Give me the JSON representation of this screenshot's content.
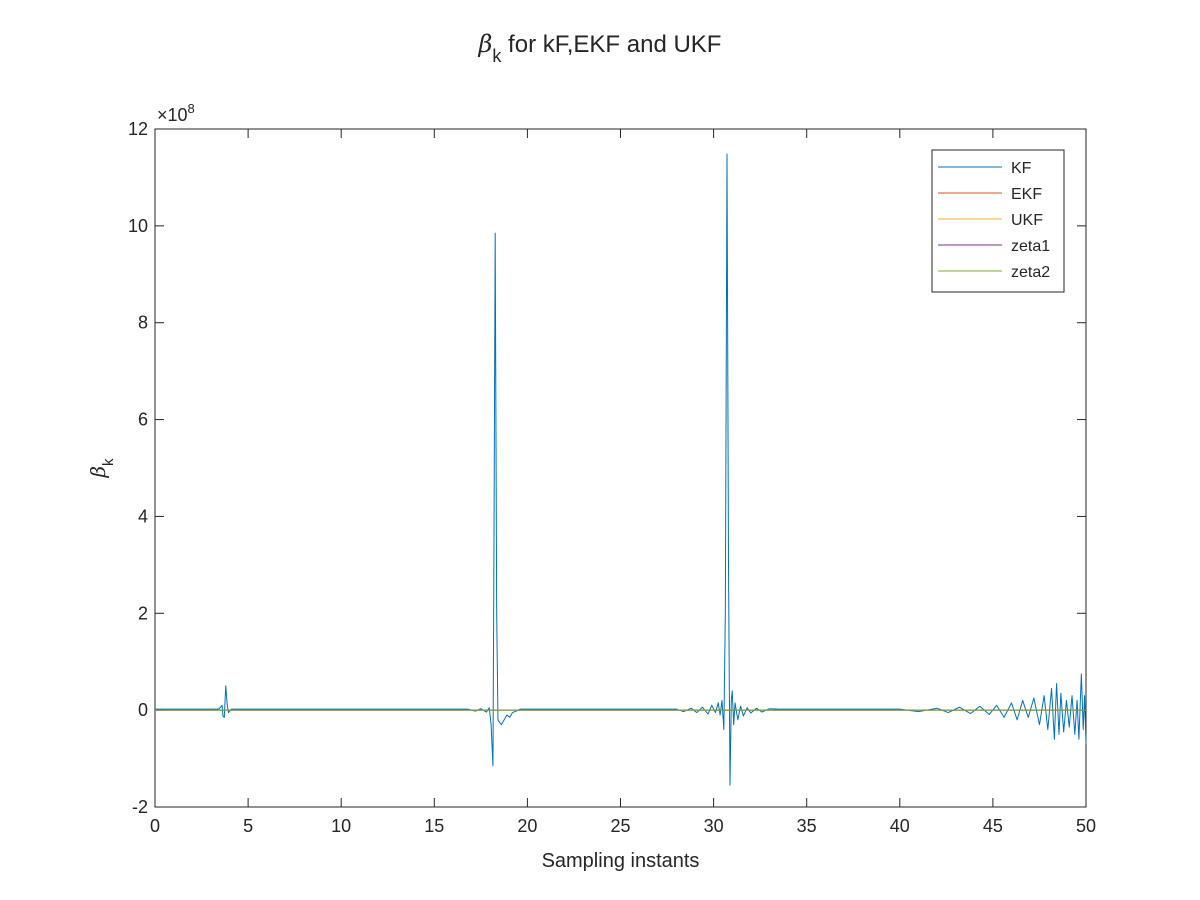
{
  "chart_data": {
    "type": "line",
    "title": {
      "symbol": "β",
      "subscript": "k",
      "text": " for kF,EKF and UKF"
    },
    "xlabel": "Sampling instants",
    "ylabel": {
      "symbol": "β",
      "subscript": "k"
    },
    "y_exponent": {
      "base": "×10",
      "power": "8"
    },
    "xlim": [
      0,
      50
    ],
    "ylim": [
      -2,
      12
    ],
    "xticks": [
      0,
      5,
      10,
      15,
      20,
      25,
      30,
      35,
      40,
      45,
      50
    ],
    "yticks": [
      -2,
      0,
      2,
      4,
      6,
      8,
      10,
      12
    ],
    "legend_position": "top-right",
    "grid": false,
    "series": [
      {
        "name": "KF",
        "color": "#0072BD",
        "points": [
          [
            0,
            0.02
          ],
          [
            3.4,
            0.02
          ],
          [
            3.5,
            0.05
          ],
          [
            3.6,
            0.1
          ],
          [
            3.65,
            -0.12
          ],
          [
            3.72,
            -0.15
          ],
          [
            3.8,
            0.5
          ],
          [
            3.88,
            0.1
          ],
          [
            3.95,
            -0.05
          ],
          [
            4.1,
            0.02
          ],
          [
            16.8,
            0.02
          ],
          [
            17.2,
            -0.02
          ],
          [
            17.5,
            0.03
          ],
          [
            17.8,
            -0.04
          ],
          [
            17.95,
            0.05
          ],
          [
            18.05,
            -0.3
          ],
          [
            18.15,
            -1.15
          ],
          [
            18.2,
            3
          ],
          [
            18.27,
            9.85
          ],
          [
            18.35,
            2
          ],
          [
            18.42,
            -0.2
          ],
          [
            18.5,
            -0.25
          ],
          [
            18.6,
            -0.3
          ],
          [
            18.75,
            -0.2
          ],
          [
            18.9,
            -0.1
          ],
          [
            19.05,
            -0.15
          ],
          [
            19.2,
            -0.05
          ],
          [
            19.4,
            -0.02
          ],
          [
            19.6,
            0.02
          ],
          [
            19.9,
            0.02
          ],
          [
            28.0,
            0.02
          ],
          [
            28.4,
            -0.03
          ],
          [
            28.8,
            0.04
          ],
          [
            29.1,
            -0.05
          ],
          [
            29.4,
            0.06
          ],
          [
            29.7,
            -0.08
          ],
          [
            29.9,
            0.1
          ],
          [
            30.1,
            -0.05
          ],
          [
            30.25,
            0.15
          ],
          [
            30.35,
            -0.1
          ],
          [
            30.45,
            0.2
          ],
          [
            30.55,
            -0.4
          ],
          [
            30.63,
            2
          ],
          [
            30.72,
            11.48
          ],
          [
            30.8,
            3
          ],
          [
            30.88,
            -1.55
          ],
          [
            30.95,
            0.2
          ],
          [
            31.0,
            0.4
          ],
          [
            31.08,
            -0.3
          ],
          [
            31.15,
            0.15
          ],
          [
            31.3,
            -0.2
          ],
          [
            31.45,
            0.08
          ],
          [
            31.6,
            -0.12
          ],
          [
            31.8,
            0.05
          ],
          [
            32.0,
            -0.06
          ],
          [
            32.3,
            0.04
          ],
          [
            32.6,
            -0.04
          ],
          [
            33.0,
            0.03
          ],
          [
            33.5,
            0.02
          ],
          [
            34.2,
            0.02
          ],
          [
            40.0,
            0.02
          ],
          [
            41.0,
            -0.03
          ],
          [
            42.0,
            0.04
          ],
          [
            42.6,
            -0.05
          ],
          [
            43.2,
            0.06
          ],
          [
            43.8,
            -0.07
          ],
          [
            44.3,
            0.08
          ],
          [
            44.8,
            -0.09
          ],
          [
            45.2,
            0.1
          ],
          [
            45.6,
            -0.15
          ],
          [
            46.0,
            0.15
          ],
          [
            46.3,
            -0.2
          ],
          [
            46.6,
            0.2
          ],
          [
            46.9,
            -0.15
          ],
          [
            47.2,
            0.25
          ],
          [
            47.5,
            -0.3
          ],
          [
            47.75,
            0.3
          ],
          [
            47.95,
            -0.4
          ],
          [
            48.15,
            0.45
          ],
          [
            48.3,
            -0.6
          ],
          [
            48.42,
            0.55
          ],
          [
            48.55,
            -0.5
          ],
          [
            48.65,
            0.35
          ],
          [
            48.8,
            -0.45
          ],
          [
            48.95,
            0.2
          ],
          [
            49.1,
            -0.35
          ],
          [
            49.25,
            0.3
          ],
          [
            49.4,
            -0.5
          ],
          [
            49.52,
            0.2
          ],
          [
            49.62,
            -0.6
          ],
          [
            49.75,
            0.75
          ],
          [
            49.85,
            -0.4
          ],
          [
            49.92,
            0.3
          ],
          [
            50.0,
            -0.7
          ]
        ]
      },
      {
        "name": "EKF",
        "color": "#D95319",
        "points": [
          [
            0,
            0
          ],
          [
            50,
            0
          ]
        ]
      },
      {
        "name": "UKF",
        "color": "#EDB120",
        "points": [
          [
            0,
            0
          ],
          [
            50,
            0
          ]
        ]
      },
      {
        "name": "zeta1",
        "color": "#7E2F8E",
        "points": [
          [
            0,
            0
          ],
          [
            50,
            0
          ]
        ]
      },
      {
        "name": "zeta2",
        "color": "#77AC30",
        "points": [
          [
            0,
            0
          ],
          [
            50,
            0
          ]
        ]
      }
    ]
  }
}
